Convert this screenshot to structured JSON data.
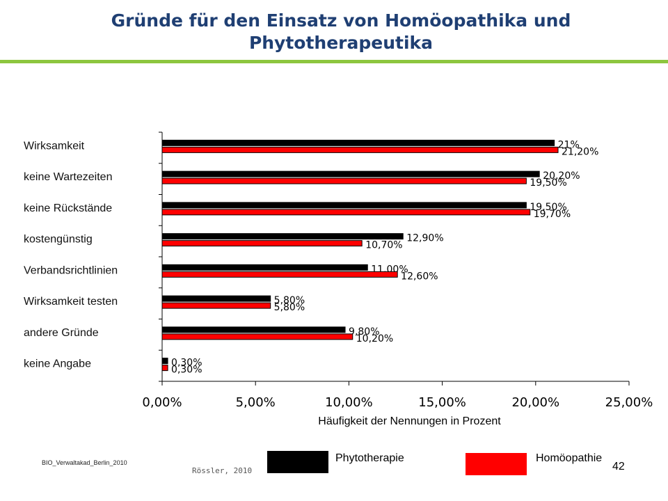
{
  "slide": {
    "title": "Gründe für den Einsatz von Homöopathika und Phytotherapeutika",
    "footer_left": "BIO_Verwaltakad_Berlin_2010",
    "author": "Rössler, 2010",
    "page_number": "42",
    "accent_color": "#8DC63F"
  },
  "legend": {
    "items": [
      {
        "label": "Phytotherapie",
        "color": "#000000"
      },
      {
        "label": "Homöopathie",
        "color": "#FF0000"
      }
    ]
  },
  "chart_data": {
    "type": "bar",
    "orientation": "horizontal",
    "xlabel": "Häufigkeit der Nennungen in Prozent",
    "xlim": [
      0,
      25
    ],
    "xticks": [
      "0,00%",
      "5,00%",
      "10,00%",
      "15,00%",
      "20,00%",
      "25,00%"
    ],
    "categories": [
      "Wirksamkeit",
      "keine Wartezeiten",
      "keine Rückstände",
      "kostengünstig",
      "Verbandsrichtlinien",
      "Wirksamkeit testen",
      "andere Gründe",
      "keine Angabe"
    ],
    "series": [
      {
        "name": "Phytotherapie",
        "color": "#000000",
        "values": [
          21,
          20.2,
          19.5,
          12.9,
          11.0,
          5.8,
          9.8,
          0.3
        ],
        "labels": [
          "21%",
          "20,20%",
          "19,50%",
          "12,90%",
          "11,00%",
          "5,80%",
          "9,80%",
          "0,30%"
        ]
      },
      {
        "name": "Homöopathie",
        "color": "#FF0000",
        "values": [
          21.2,
          19.5,
          19.7,
          10.7,
          12.6,
          5.8,
          10.2,
          0.3
        ],
        "labels": [
          "21,20%",
          "19,50%",
          "19,70%",
          "10,70%",
          "12,60%",
          "5,80%",
          "10,20%",
          "0,30%"
        ]
      }
    ],
    "grid": false,
    "legend_position": "bottom"
  }
}
